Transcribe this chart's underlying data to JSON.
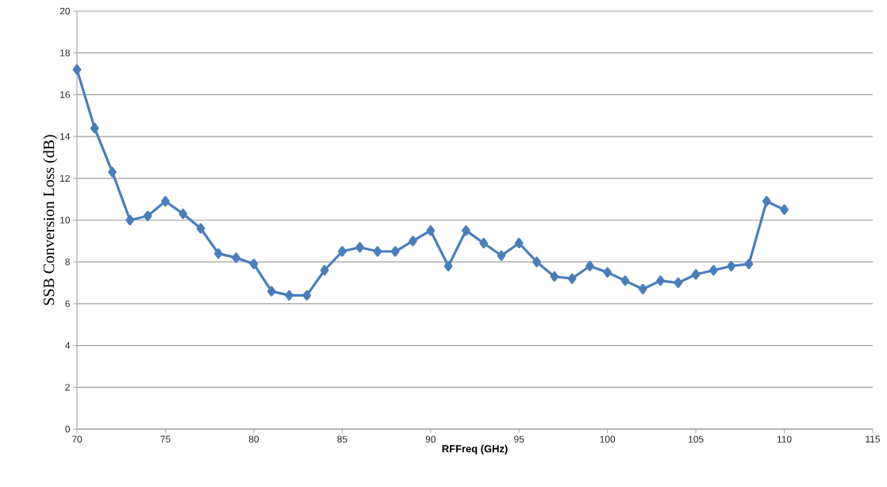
{
  "chart_data": {
    "type": "line",
    "xlabel": "RFFreq (GHz)",
    "ylabel": "SSB Conversion Loss (dB)",
    "x": [
      70,
      71,
      72,
      73,
      74,
      75,
      76,
      77,
      78,
      79,
      80,
      81,
      82,
      83,
      84,
      85,
      86,
      87,
      88,
      89,
      90,
      91,
      92,
      93,
      94,
      95,
      96,
      97,
      98,
      99,
      100,
      101,
      102,
      103,
      104,
      105,
      106,
      107,
      108,
      109,
      110
    ],
    "series": [
      {
        "color": "#4a7ebb",
        "values": [
          17.2,
          14.4,
          12.3,
          10.0,
          10.2,
          10.9,
          10.3,
          9.6,
          8.4,
          8.2,
          7.9,
          6.6,
          6.4,
          6.4,
          7.6,
          8.5,
          8.7,
          8.5,
          8.5,
          9.0,
          9.5,
          7.8,
          9.5,
          8.9,
          8.3,
          8.9,
          8.0,
          7.3,
          7.2,
          7.8,
          7.5,
          7.1,
          6.7,
          7.1,
          7.0,
          7.4,
          7.6,
          7.8,
          7.9,
          10.9,
          10.5
        ]
      }
    ],
    "xlim": [
      70,
      115
    ],
    "xticks": [
      70,
      75,
      80,
      85,
      90,
      95,
      100,
      105,
      110,
      115
    ],
    "ylim": [
      0,
      20
    ],
    "yticks": [
      0,
      2,
      4,
      6,
      8,
      10,
      12,
      14,
      16,
      18,
      20
    ],
    "grid": "y",
    "marker": "diamond",
    "line_style": "solid"
  }
}
